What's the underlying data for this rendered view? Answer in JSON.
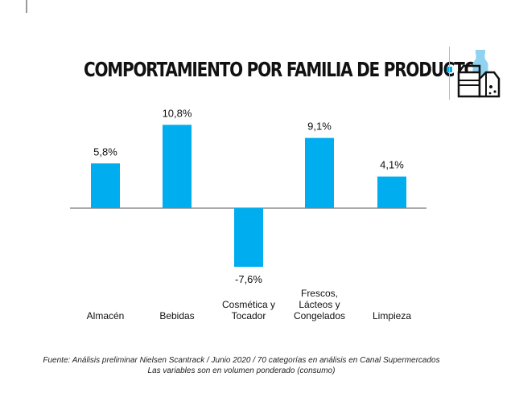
{
  "title": "COMPORTAMIENTO POR FAMILIA DE PRODUCTO",
  "colors": {
    "bar": "#00aeef",
    "axis": "#555555",
    "accent": "#00aeef"
  },
  "icon": "grocery-products-icon",
  "chart_data": {
    "type": "bar",
    "title": "COMPORTAMIENTO POR FAMILIA DE PRODUCTO",
    "categories": [
      [
        "Almacén"
      ],
      [
        "Bebidas"
      ],
      [
        "Cosmética y",
        "Tocador"
      ],
      [
        "Frescos,",
        "Lácteos y",
        "Congelados"
      ],
      [
        "Limpieza"
      ]
    ],
    "values": [
      5.8,
      10.8,
      -7.6,
      9.1,
      4.1
    ],
    "value_labels": [
      "5,8%",
      "10,8%",
      "-7,6%",
      "9,1%",
      "4,1%"
    ],
    "unit": "%",
    "ylim": [
      -8,
      11
    ],
    "grid": false,
    "legend": "none"
  },
  "footer": {
    "line1": "Fuente: Análisis preliminar Nielsen Scantrack / Junio 2020 / 70 categorías en análisis en Canal Supermercados",
    "line2": "Las variables son en volumen ponderado (consumo)"
  }
}
